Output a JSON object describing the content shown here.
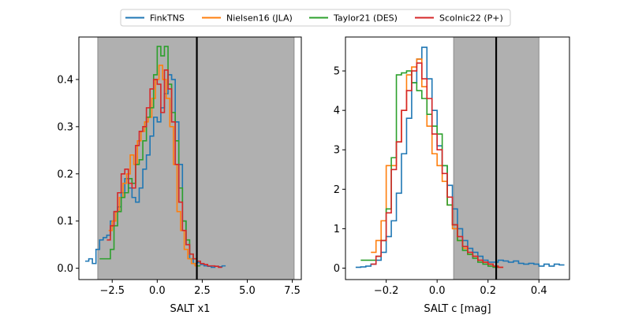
{
  "legend": {
    "placement": "top-center",
    "entries": [
      {
        "name": "FinkTNS",
        "color": "#1f77b4"
      },
      {
        "name": "Nielsen16 (JLA)",
        "color": "#ff7f0e"
      },
      {
        "name": "Taylor21 (DES)",
        "color": "#2ca02c"
      },
      {
        "name": "Scolnic22 (P+)",
        "color": "#d62728"
      }
    ]
  },
  "chart_data": [
    {
      "type": "step-histogram",
      "xlabel": "SALT x1",
      "ylabel": "",
      "xlim": [
        -4.35,
        8.0
      ],
      "ylim": [
        -0.024,
        0.49
      ],
      "xticks": [
        -2.5,
        0.0,
        2.5,
        5.0,
        7.5
      ],
      "xtick_labels": [
        "−2.5",
        "0.0",
        "2.5",
        "5.0",
        "7.5"
      ],
      "yticks": [
        0.0,
        0.1,
        0.2,
        0.3,
        0.4
      ],
      "ytick_labels": [
        "0.0",
        "0.1",
        "0.2",
        "0.3",
        "0.4"
      ],
      "shaded_region": {
        "x0": -3.3,
        "x1": 7.6,
        "color": "#b0b0b0"
      },
      "vline": {
        "x": 2.2,
        "color": "#000000"
      },
      "series": [
        {
          "name": "FinkTNS",
          "color": "#1f77b4",
          "x": [
            -3.9,
            -3.7,
            -3.5,
            -3.3,
            -3.1,
            -2.9,
            -2.7,
            -2.5,
            -2.3,
            -2.1,
            -1.9,
            -1.7,
            -1.5,
            -1.3,
            -1.1,
            -0.9,
            -0.7,
            -0.5,
            -0.3,
            -0.1,
            0.1,
            0.3,
            0.5,
            0.7,
            0.9,
            1.1,
            1.3,
            1.5,
            1.7,
            1.9,
            2.1,
            2.3,
            2.5,
            2.7,
            2.9,
            3.1,
            3.3,
            3.5,
            3.7
          ],
          "y": [
            0.015,
            0.02,
            0.01,
            0.04,
            0.06,
            0.065,
            0.07,
            0.1,
            0.12,
            0.13,
            0.16,
            0.19,
            0.17,
            0.15,
            0.14,
            0.17,
            0.21,
            0.24,
            0.28,
            0.32,
            0.31,
            0.34,
            0.37,
            0.41,
            0.4,
            0.31,
            0.22,
            0.1,
            0.05,
            0.02,
            0.01,
            0.012,
            0.008,
            0.005,
            0.004,
            0.002,
            0.004,
            0.003,
            0.005
          ]
        },
        {
          "name": "Nielsen16 (JLA)",
          "color": "#ff7f0e",
          "x": [
            -2.6,
            -2.4,
            -2.2,
            -2.0,
            -1.8,
            -1.6,
            -1.4,
            -1.2,
            -1.0,
            -0.8,
            -0.6,
            -0.4,
            -0.2,
            0.0,
            0.2,
            0.4,
            0.6,
            0.8,
            1.0,
            1.2,
            1.4,
            1.6,
            1.8,
            2.0,
            2.2
          ],
          "y": [
            0.08,
            0.1,
            0.12,
            0.15,
            0.18,
            0.2,
            0.24,
            0.22,
            0.27,
            0.29,
            0.31,
            0.32,
            0.36,
            0.4,
            0.43,
            0.4,
            0.36,
            0.3,
            0.22,
            0.12,
            0.08,
            0.04,
            0.02,
            0.01,
            0.005
          ]
        },
        {
          "name": "Taylor21 (DES)",
          "color": "#2ca02c",
          "x": [
            -3.1,
            -2.9,
            -2.7,
            -2.5,
            -2.3,
            -2.1,
            -1.9,
            -1.7,
            -1.5,
            -1.3,
            -1.1,
            -0.9,
            -0.7,
            -0.5,
            -0.3,
            -0.1,
            0.1,
            0.3,
            0.5,
            0.7,
            0.9,
            1.1,
            1.3,
            1.5,
            1.7,
            1.9,
            2.1,
            2.3
          ],
          "y": [
            0.02,
            0.02,
            0.02,
            0.04,
            0.09,
            0.12,
            0.15,
            0.16,
            0.19,
            0.18,
            0.22,
            0.23,
            0.27,
            0.32,
            0.34,
            0.41,
            0.47,
            0.45,
            0.47,
            0.39,
            0.33,
            0.27,
            0.17,
            0.1,
            0.06,
            0.03,
            0.02,
            0.005
          ]
        },
        {
          "name": "Scolnic22 (P+)",
          "color": "#d62728",
          "x": [
            -2.7,
            -2.5,
            -2.3,
            -2.1,
            -1.9,
            -1.7,
            -1.5,
            -1.3,
            -1.1,
            -0.9,
            -0.7,
            -0.5,
            -0.3,
            -0.1,
            0.1,
            0.3,
            0.5,
            0.7,
            0.9,
            1.1,
            1.3,
            1.5,
            1.7,
            1.9,
            2.1,
            2.3,
            2.5,
            2.7,
            2.9,
            3.1,
            3.3,
            3.5
          ],
          "y": [
            0.06,
            0.09,
            0.12,
            0.16,
            0.2,
            0.21,
            0.18,
            0.17,
            0.26,
            0.29,
            0.3,
            0.34,
            0.38,
            0.4,
            0.39,
            0.33,
            0.42,
            0.38,
            0.31,
            0.22,
            0.14,
            0.08,
            0.05,
            0.03,
            0.02,
            0.015,
            0.01,
            0.008,
            0.005,
            0.005,
            0.004,
            0.002
          ]
        }
      ]
    },
    {
      "type": "step-histogram",
      "xlabel": "SALT c [mag]",
      "ylabel": "",
      "xlim": [
        -0.36,
        0.52
      ],
      "ylim": [
        -0.29,
        5.86
      ],
      "xticks": [
        -0.2,
        0.0,
        0.2,
        0.4
      ],
      "xtick_labels": [
        "−0.2",
        "0.0",
        "0.2",
        "0.4"
      ],
      "yticks": [
        0,
        1,
        2,
        3,
        4,
        5
      ],
      "ytick_labels": [
        "0",
        "1",
        "2",
        "3",
        "4",
        "5"
      ],
      "shaded_region": {
        "x0": 0.065,
        "x1": 0.4,
        "color": "#b0b0b0"
      },
      "vline": {
        "x": 0.232,
        "color": "#000000"
      },
      "series": [
        {
          "name": "FinkTNS",
          "color": "#1f77b4",
          "x": [
            -0.31,
            -0.29,
            -0.27,
            -0.25,
            -0.23,
            -0.21,
            -0.19,
            -0.17,
            -0.15,
            -0.13,
            -0.11,
            -0.09,
            -0.07,
            -0.05,
            -0.03,
            -0.01,
            0.01,
            0.03,
            0.05,
            0.07,
            0.09,
            0.11,
            0.13,
            0.15,
            0.17,
            0.19,
            0.21,
            0.23,
            0.25,
            0.27,
            0.29,
            0.31,
            0.33,
            0.35,
            0.37,
            0.39,
            0.41,
            0.43,
            0.45,
            0.47,
            0.49
          ],
          "y": [
            0.02,
            0.03,
            0.05,
            0.1,
            0.2,
            0.4,
            0.8,
            1.2,
            1.9,
            2.9,
            3.8,
            4.7,
            5.3,
            5.6,
            4.8,
            4.0,
            3.1,
            2.6,
            2.1,
            1.5,
            1.0,
            0.7,
            0.5,
            0.4,
            0.3,
            0.2,
            0.15,
            0.15,
            0.2,
            0.18,
            0.15,
            0.18,
            0.12,
            0.1,
            0.12,
            0.1,
            0.05,
            0.1,
            0.05,
            0.1,
            0.08
          ]
        },
        {
          "name": "Nielsen16 (JLA)",
          "color": "#ff7f0e",
          "x": [
            -0.25,
            -0.23,
            -0.21,
            -0.19,
            -0.17,
            -0.15,
            -0.13,
            -0.11,
            -0.09,
            -0.07,
            -0.05,
            -0.03,
            -0.01,
            0.01,
            0.03,
            0.05,
            0.07,
            0.09,
            0.11,
            0.13,
            0.15,
            0.17,
            0.19,
            0.21,
            0.23,
            0.25
          ],
          "y": [
            0.4,
            0.7,
            1.2,
            2.6,
            2.6,
            3.2,
            4.0,
            4.9,
            5.1,
            5.3,
            4.6,
            3.6,
            2.9,
            2.6,
            2.2,
            1.6,
            1.0,
            0.7,
            0.5,
            0.35,
            0.3,
            0.2,
            0.15,
            0.1,
            0.05,
            0.02
          ]
        },
        {
          "name": "Taylor21 (DES)",
          "color": "#2ca02c",
          "x": [
            -0.29,
            -0.27,
            -0.25,
            -0.23,
            -0.21,
            -0.19,
            -0.17,
            -0.15,
            -0.13,
            -0.11,
            -0.09,
            -0.07,
            -0.05,
            -0.03,
            -0.01,
            0.01,
            0.03,
            0.05,
            0.07,
            0.09,
            0.11,
            0.13,
            0.15,
            0.17,
            0.19,
            0.21,
            0.23
          ],
          "y": [
            0.2,
            0.2,
            0.2,
            0.3,
            0.7,
            1.5,
            2.8,
            4.9,
            4.95,
            5.0,
            4.7,
            4.5,
            4.3,
            3.9,
            3.6,
            3.4,
            2.6,
            1.6,
            1.1,
            0.7,
            0.45,
            0.35,
            0.25,
            0.15,
            0.1,
            0.05,
            0.02
          ]
        },
        {
          "name": "Scolnic22 (P+)",
          "color": "#d62728",
          "x": [
            -0.25,
            -0.23,
            -0.21,
            -0.19,
            -0.17,
            -0.15,
            -0.13,
            -0.11,
            -0.09,
            -0.07,
            -0.05,
            -0.03,
            -0.01,
            0.01,
            0.03,
            0.05,
            0.07,
            0.09,
            0.11,
            0.13,
            0.15,
            0.17,
            0.19,
            0.21,
            0.23,
            0.25
          ],
          "y": [
            0.1,
            0.3,
            0.7,
            1.4,
            2.5,
            3.2,
            4.0,
            4.5,
            5.0,
            5.2,
            4.8,
            4.3,
            3.4,
            3.0,
            2.4,
            1.8,
            1.1,
            0.8,
            0.55,
            0.4,
            0.3,
            0.2,
            0.15,
            0.1,
            0.05,
            0.02
          ]
        }
      ]
    }
  ]
}
